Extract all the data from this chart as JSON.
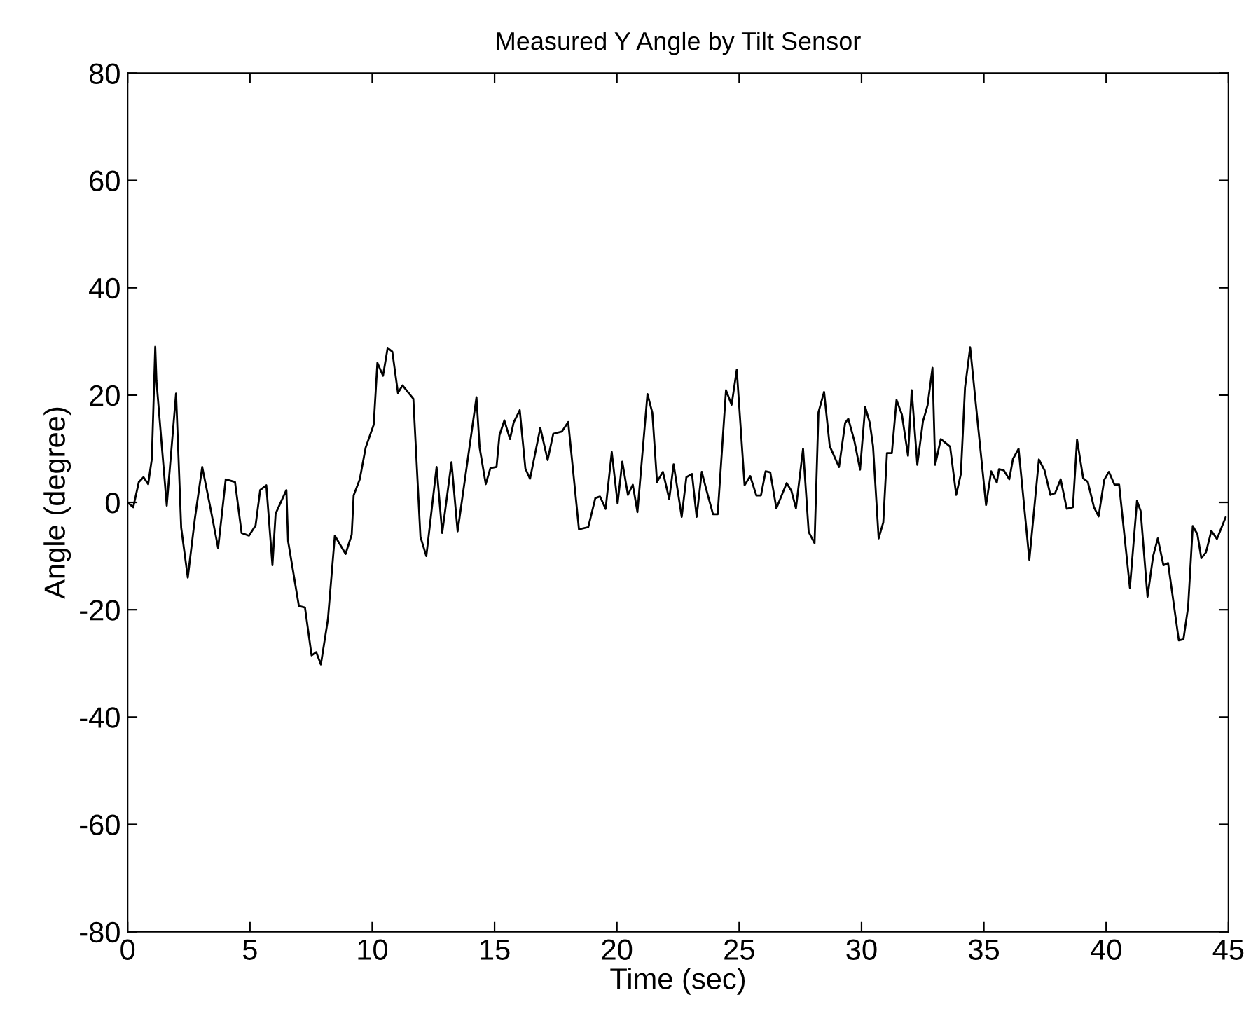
{
  "chart_data": {
    "type": "line",
    "title": "Measured Y Angle by Tilt Sensor",
    "xlabel": "Time (sec)",
    "ylabel": "Angle (degree)",
    "xlim": [
      0,
      45
    ],
    "ylim": [
      -80,
      80
    ],
    "xticks": [
      0,
      5,
      10,
      15,
      20,
      25,
      30,
      35,
      40,
      45
    ],
    "yticks": [
      -80,
      -60,
      -40,
      -20,
      0,
      20,
      40,
      60,
      80
    ],
    "grid": false,
    "legend": false,
    "marker": "none",
    "line_style": "solid",
    "series": [
      {
        "color": "#000000",
        "x": [
          0,
          0.23,
          0.46,
          0.65,
          0.84,
          0.99,
          1.13,
          1.18,
          1.6,
          1.98,
          2.19,
          2.46,
          2.75,
          3.05,
          3.38,
          3.7,
          4.01,
          4.39,
          4.66,
          4.96,
          5.23,
          5.42,
          5.67,
          5.92,
          6.05,
          6.49,
          6.56,
          7.0,
          7.25,
          7.52,
          7.71,
          7.9,
          8.19,
          8.47,
          8.91,
          9.16,
          9.24,
          9.49,
          9.73,
          10.06,
          10.21,
          10.44,
          10.63,
          10.82,
          11.05,
          11.24,
          11.68,
          11.97,
          12.21,
          12.63,
          12.86,
          13.24,
          13.49,
          14.26,
          14.39,
          14.64,
          14.83,
          15.08,
          15.2,
          15.4,
          15.63,
          15.78,
          16.03,
          16.26,
          16.45,
          16.87,
          17.17,
          17.4,
          17.75,
          18.01,
          18.45,
          18.83,
          19.12,
          19.31,
          19.54,
          19.79,
          20.03,
          20.22,
          20.45,
          20.65,
          20.84,
          21.25,
          21.45,
          21.64,
          21.88,
          22.14,
          22.32,
          22.65,
          22.84,
          23.07,
          23.26,
          23.47,
          23.66,
          23.93,
          24.12,
          24.46,
          24.69,
          24.9,
          25.22,
          25.45,
          25.7,
          25.89,
          26.08,
          26.27,
          26.52,
          26.94,
          27.13,
          27.32,
          27.61,
          27.84,
          28.08,
          28.24,
          28.47,
          28.7,
          29.08,
          29.33,
          29.46,
          29.71,
          29.94,
          30.15,
          30.34,
          30.47,
          30.7,
          30.89,
          31.04,
          31.24,
          31.43,
          31.65,
          31.9,
          32.05,
          32.28,
          32.51,
          32.7,
          32.9,
          33.01,
          33.24,
          33.62,
          33.87,
          34.06,
          34.23,
          34.44,
          34.67,
          35.09,
          35.3,
          35.53,
          35.62,
          35.81,
          36.04,
          36.19,
          36.42,
          36.86,
          37.25,
          37.48,
          37.72,
          37.91,
          38.14,
          38.39,
          38.64,
          38.81,
          39.06,
          39.25,
          39.5,
          39.69,
          39.92,
          40.11,
          40.34,
          40.53,
          40.97,
          41.26,
          41.41,
          41.69,
          41.92,
          42.11,
          42.34,
          42.53,
          42.97,
          43.16,
          43.35,
          43.54,
          43.73,
          43.89,
          44.08,
          44.3,
          44.53,
          44.88
        ],
        "values": [
          0,
          -0.9,
          3.8,
          4.7,
          3.4,
          8.1,
          29,
          22.6,
          -0.6,
          20.3,
          -4.7,
          -14,
          -3,
          6.6,
          -0.9,
          -8.5,
          4.3,
          3.8,
          -5.7,
          -6.2,
          -4.3,
          2.3,
          3.2,
          -11.7,
          -2.1,
          2.3,
          -7.2,
          -19.3,
          -19.6,
          -28.5,
          -27.9,
          -30.2,
          -21.7,
          -6.2,
          -9.6,
          -6,
          1.3,
          4.3,
          10.2,
          14.5,
          26,
          23.6,
          28.8,
          28.1,
          20.4,
          21.8,
          19.3,
          -6.4,
          -10,
          6.6,
          -5.7,
          7.5,
          -5.4,
          19.6,
          10.2,
          3.4,
          6.4,
          6.6,
          12.5,
          15.3,
          11.8,
          14.9,
          17.2,
          6.3,
          4.4,
          13.9,
          7.9,
          12.8,
          13.2,
          15,
          -5,
          -4.6,
          0.8,
          1.1,
          -1.2,
          9.4,
          -0.2,
          7.6,
          1.4,
          3.3,
          -1.8,
          20.2,
          16.7,
          3.8,
          5.7,
          0.6,
          7.1,
          -2.7,
          4.7,
          5.3,
          -2.7,
          5.7,
          2.3,
          -2.2,
          -2.2,
          20.9,
          18.2,
          24.7,
          3.2,
          4.9,
          1.3,
          1.3,
          5.8,
          5.6,
          -1.1,
          3.6,
          2.2,
          -1.1,
          10,
          -5.5,
          -7.6,
          16.8,
          20.6,
          10.5,
          6.6,
          14.8,
          15.6,
          11.4,
          6.1,
          17.8,
          14.8,
          10.5,
          -6.7,
          -3.7,
          9.2,
          9.2,
          19.1,
          16.4,
          8.7,
          20.9,
          7,
          15.1,
          18.1,
          25.1,
          7,
          11.8,
          10.4,
          1.4,
          5.3,
          21.4,
          28.9,
          18.4,
          -0.5,
          5.8,
          3.7,
          6.2,
          6,
          4.3,
          8.1,
          10,
          -10.7,
          8,
          6,
          1.4,
          1.7,
          4.3,
          -1.2,
          -0.9,
          11.7,
          4.5,
          3.8,
          -0.9,
          -2.6,
          4.2,
          5.7,
          3.3,
          3.3,
          -15.9,
          0.3,
          -1.6,
          -17.6,
          -10,
          -6.7,
          -11.7,
          -11.3,
          -25.7,
          -25.5,
          -19.5,
          -4.4,
          -5.9,
          -10.4,
          -9.3,
          -5.3,
          -6.8,
          -2.8
        ]
      }
    ]
  }
}
